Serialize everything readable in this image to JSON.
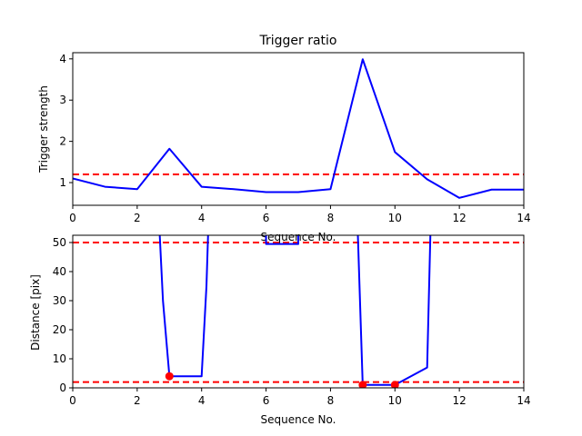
{
  "chart_data": [
    {
      "type": "line",
      "title": "Trigger ratio",
      "xlabel": "Sequence No.",
      "ylabel": "Trigger strength",
      "xlim": [
        0,
        14
      ],
      "ylim": [
        0.45,
        4.15
      ],
      "xticks": [
        0,
        2,
        4,
        6,
        8,
        10,
        12,
        14
      ],
      "yticks": [
        1,
        2,
        3,
        4
      ],
      "series": [
        {
          "color": "#0000ff",
          "style": "solid",
          "x": [
            0,
            1,
            2,
            3,
            4,
            5,
            6,
            7,
            8,
            9,
            10,
            11,
            12,
            13,
            14
          ],
          "y": [
            1.1,
            0.9,
            0.84,
            1.82,
            0.9,
            0.84,
            0.77,
            0.77,
            0.84,
            3.99,
            1.74,
            1.08,
            0.63,
            0.83,
            0.83
          ]
        }
      ],
      "hlines": [
        {
          "y": 1.2,
          "color": "#ff0000",
          "style": "dashed"
        }
      ],
      "grid": false
    },
    {
      "type": "line",
      "title": "",
      "xlabel": "Sequence No.",
      "ylabel": "Distance [pix]",
      "xlim": [
        0,
        14
      ],
      "ylim": [
        0,
        52.5
      ],
      "xticks": [
        0,
        2,
        4,
        6,
        8,
        10,
        12,
        14
      ],
      "yticks": [
        0,
        10,
        20,
        30,
        40,
        50
      ],
      "series": [
        {
          "color": "#0000ff",
          "style": "solid",
          "x": [
            2.7,
            2.8,
            3,
            4,
            4.15,
            4.2,
            null,
            6,
            6,
            7,
            7,
            null,
            8.85,
            9,
            10,
            11,
            11.1
          ],
          "y": [
            52.5,
            30,
            4,
            4,
            35,
            52.5,
            null,
            52.5,
            49.5,
            49.5,
            52.5,
            null,
            52.5,
            1,
            1,
            7,
            52.5
          ]
        },
        {
          "color": "#ff0000",
          "style": "markers",
          "x": [
            3,
            9,
            10
          ],
          "y": [
            4,
            1,
            1
          ]
        }
      ],
      "hlines": [
        {
          "y": 50,
          "color": "#ff0000",
          "style": "dashed"
        },
        {
          "y": 2,
          "color": "#ff0000",
          "style": "dashed"
        }
      ],
      "grid": false
    }
  ]
}
